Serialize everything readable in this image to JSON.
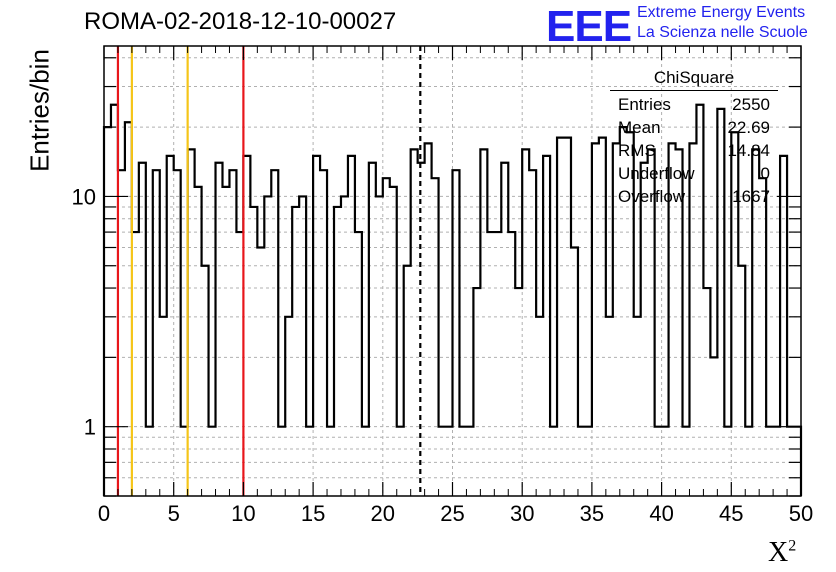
{
  "title": "ROMA-02-2018-12-10-00027",
  "logo": {
    "text": "EEE",
    "line1": "Extreme Energy Events",
    "line2": "La Scienza nelle Scuole",
    "color": "#2222ee"
  },
  "stats": {
    "name": "ChiSquare",
    "rows": [
      {
        "label": "Entries",
        "value": "2550"
      },
      {
        "label": "Mean",
        "value": "22.69"
      },
      {
        "label": "RMS",
        "value": "14.84"
      },
      {
        "label": "Underflow",
        "value": "0"
      },
      {
        "label": "Overflow",
        "value": "1667"
      }
    ]
  },
  "chart_data": {
    "type": "histogram",
    "xlabel": "X²",
    "ylabel": "Entries/bin",
    "xlim": [
      0,
      50
    ],
    "ylim": [
      0.5,
      45
    ],
    "yscale": "log",
    "grid": true,
    "bin_width": 0.5,
    "xticks": [
      "0",
      "5",
      "10",
      "15",
      "20",
      "25",
      "30",
      "35",
      "40",
      "45",
      "50"
    ],
    "yticks": [
      "1",
      "10"
    ],
    "values": [
      20,
      25,
      13,
      21,
      7,
      14,
      1,
      13,
      3,
      15,
      13,
      1,
      16,
      11,
      5,
      1,
      14,
      11,
      13,
      7,
      15,
      9,
      6,
      10,
      13,
      1,
      3,
      9,
      10,
      1,
      15,
      13,
      1,
      9,
      10,
      15,
      7,
      1,
      14,
      10,
      12,
      11,
      1,
      5,
      16,
      14,
      17,
      12,
      1,
      1,
      13,
      1,
      1,
      4,
      16,
      7,
      7,
      14,
      7,
      4,
      16,
      13,
      3,
      15,
      1,
      18,
      18,
      6,
      1,
      1,
      17,
      18,
      3,
      17,
      20,
      19,
      3,
      14,
      16,
      1,
      1,
      17,
      16,
      1,
      17,
      25,
      4,
      2,
      24,
      1,
      19,
      5,
      1,
      16,
      12,
      1,
      1,
      15,
      1,
      1
    ],
    "vlines": [
      {
        "x": 1,
        "color": "#e8161b"
      },
      {
        "x": 2,
        "color": "#f5c518"
      },
      {
        "x": 6,
        "color": "#f5c518"
      },
      {
        "x": 10,
        "color": "#e8161b"
      },
      {
        "x": 22.69,
        "color": "#000000",
        "style": "dashed"
      }
    ]
  }
}
